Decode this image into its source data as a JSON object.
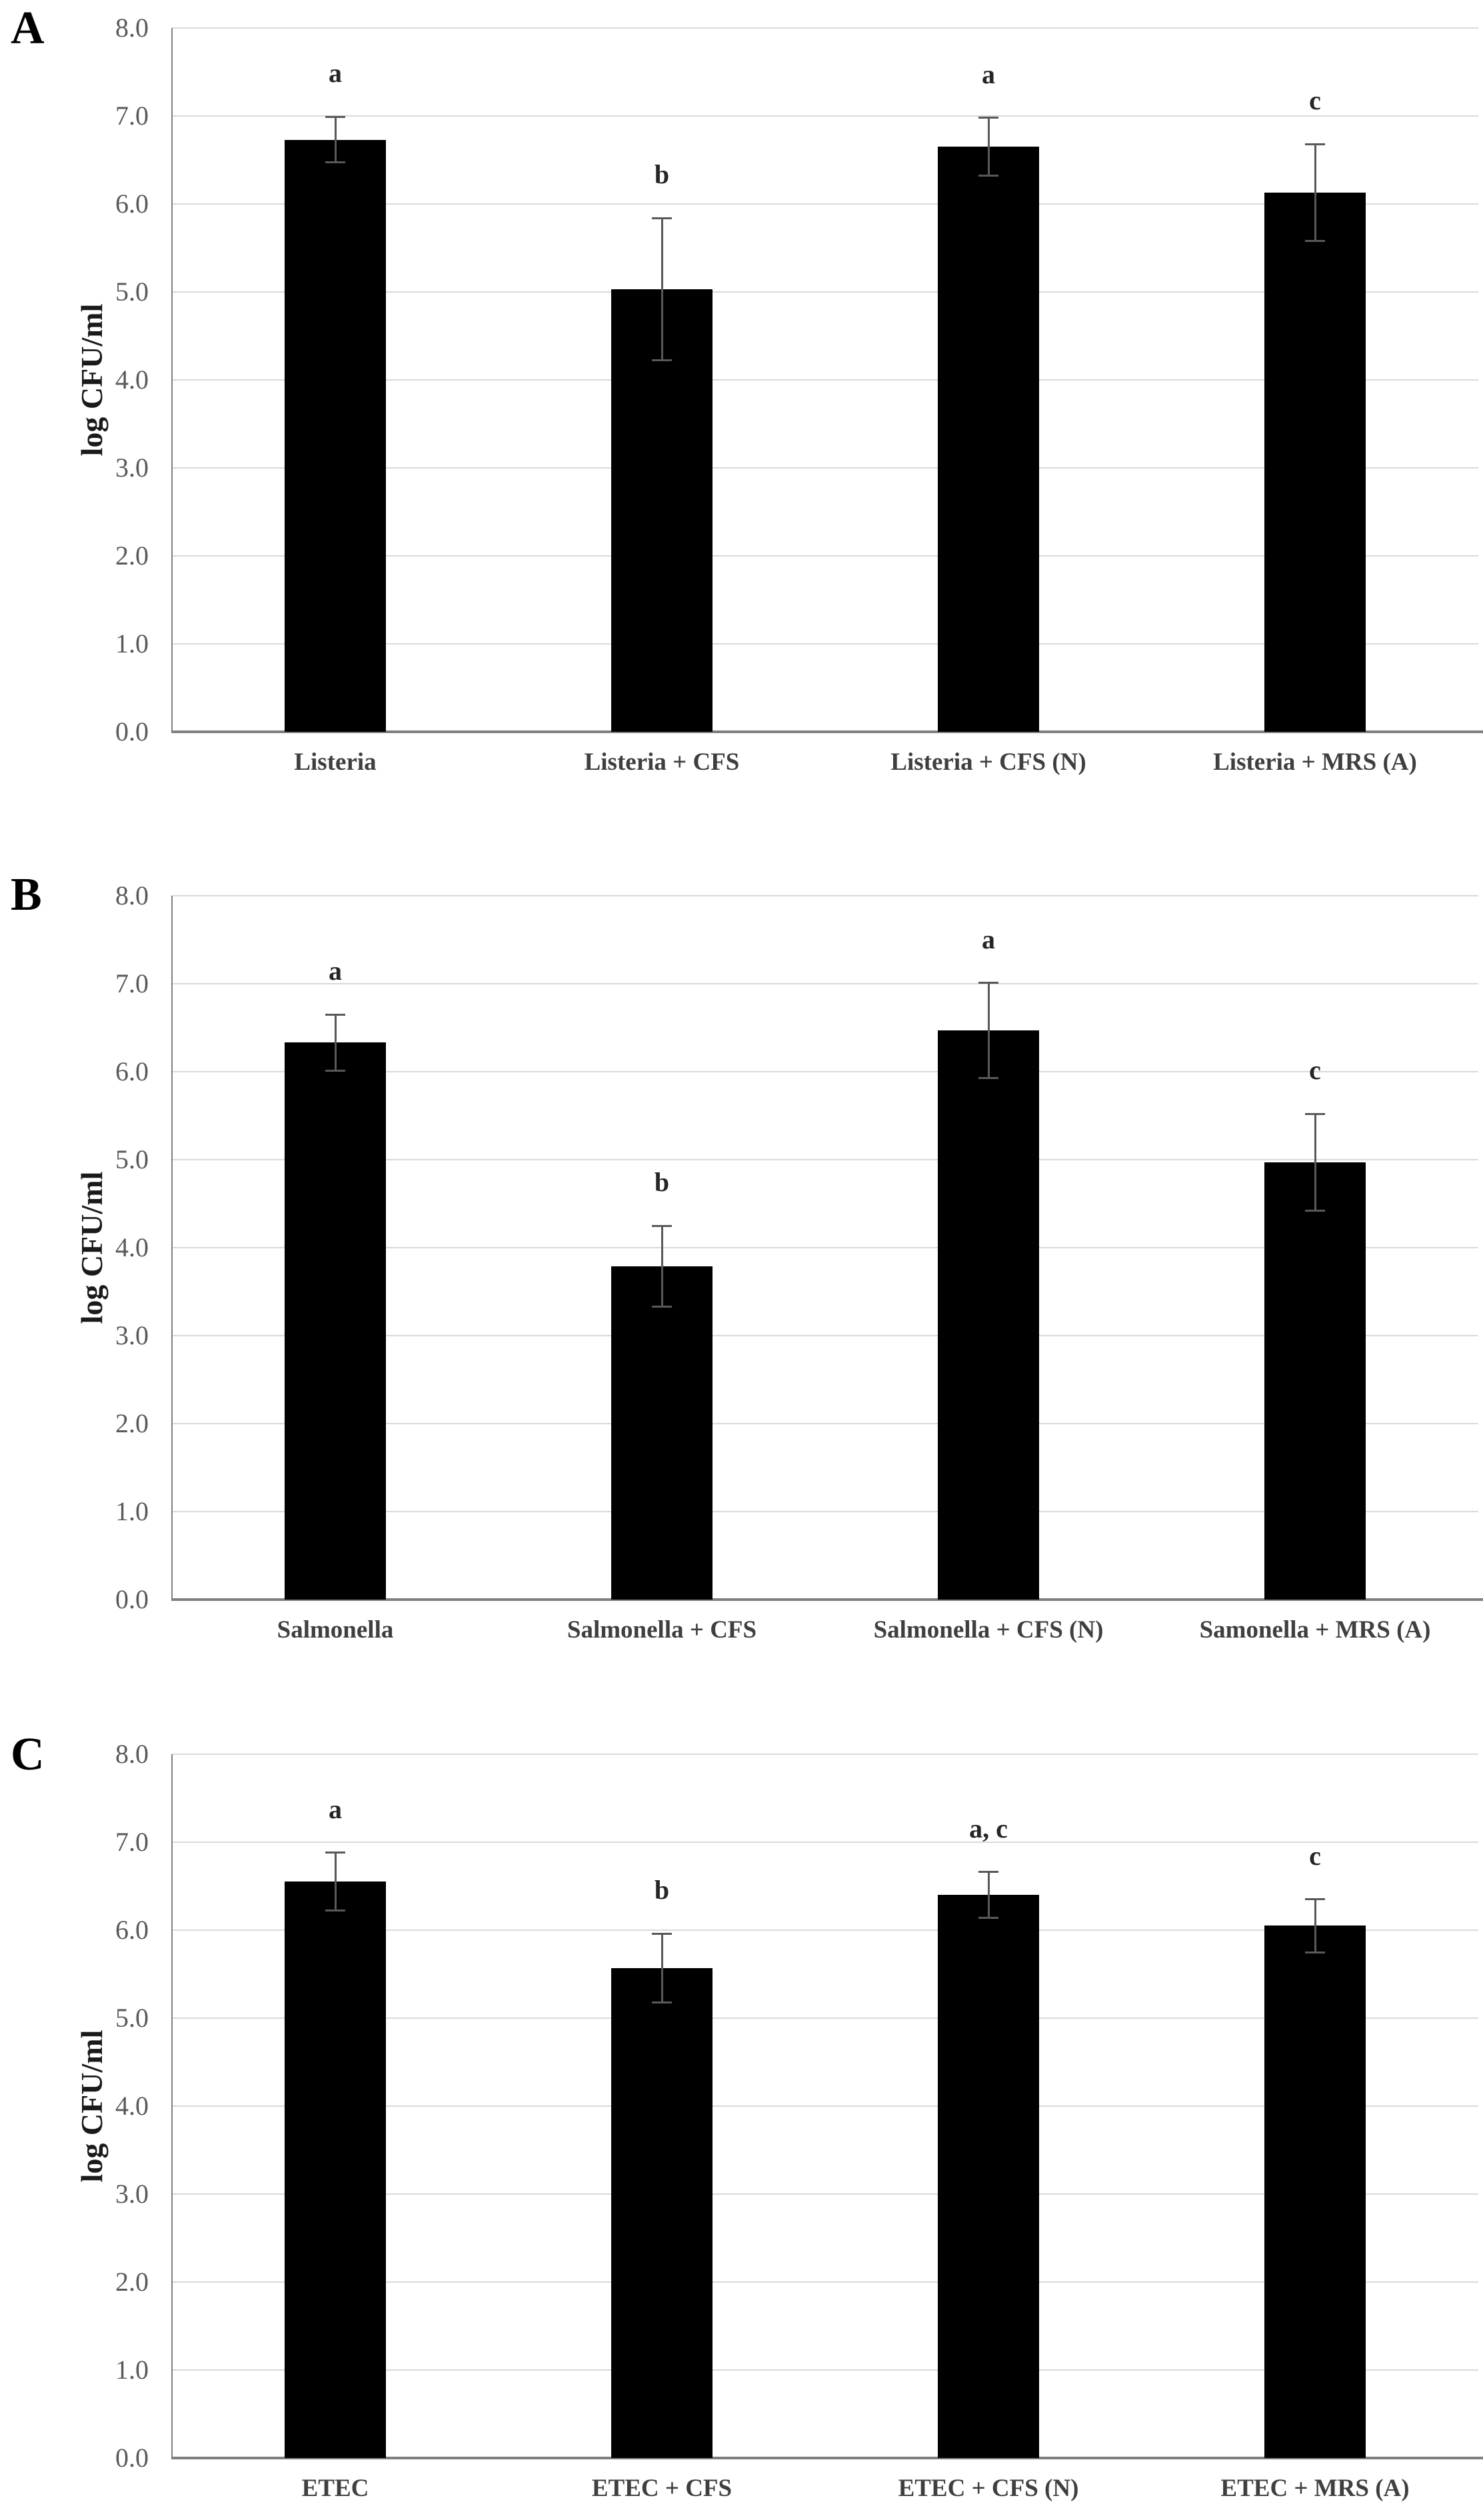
{
  "page": {
    "background": "#ffffff"
  },
  "colors": {
    "bar": "#000000",
    "error_bar": "#595959",
    "gridline": "#d9d9d9",
    "axis": "#7f7f7f",
    "tick_text": "#595959",
    "category_text": "#3f3f3f",
    "sig_text": "#262626",
    "panel_letter": "#000000"
  },
  "chart_data": [
    {
      "type": "bar",
      "panel_label": "A",
      "title": "",
      "xlabel": "",
      "ylabel": "log CFU/ml",
      "ylim": [
        0.0,
        8.0
      ],
      "ytick_step": 1.0,
      "ytick_labels": [
        "8.0",
        "7.0",
        "6.0",
        "5.0",
        "4.0",
        "3.0",
        "2.0",
        "1.0",
        "0.0"
      ],
      "grid": true,
      "legend": "none",
      "categories": [
        "Listeria",
        "Listeria + CFS",
        "Listeria + CFS (N)",
        "Listeria + MRS (A)"
      ],
      "values": [
        6.73,
        5.03,
        6.65,
        6.13
      ],
      "error_bars": [
        0.26,
        0.81,
        0.33,
        0.55
      ],
      "significance_labels": [
        "a",
        "b",
        "a",
        "c"
      ]
    },
    {
      "type": "bar",
      "panel_label": "B",
      "title": "",
      "xlabel": "",
      "ylabel": "log CFU/ml",
      "ylim": [
        0.0,
        8.0
      ],
      "ytick_step": 1.0,
      "ytick_labels": [
        "8.0",
        "7.0",
        "6.0",
        "5.0",
        "4.0",
        "3.0",
        "2.0",
        "1.0",
        "0.0"
      ],
      "grid": true,
      "legend": "none",
      "categories": [
        "Salmonella",
        "Salmonella + CFS",
        "Salmonella + CFS (N)",
        "Samonella + MRS (A)"
      ],
      "values": [
        6.33,
        3.79,
        6.47,
        4.97
      ],
      "error_bars": [
        0.32,
        0.46,
        0.54,
        0.55
      ],
      "significance_labels": [
        "a",
        "b",
        "a",
        "c"
      ]
    },
    {
      "type": "bar",
      "panel_label": "C",
      "title": "",
      "xlabel": "",
      "ylabel": "log CFU/ml",
      "ylim": [
        0.0,
        8.0
      ],
      "ytick_step": 1.0,
      "ytick_labels": [
        "8.0",
        "7.0",
        "6.0",
        "5.0",
        "4.0",
        "3.0",
        "2.0",
        "1.0",
        "0.0"
      ],
      "grid": true,
      "legend": "none",
      "categories": [
        "ETEC",
        "ETEC + CFS",
        "ETEC + CFS (N)",
        "ETEC + MRS (A)"
      ],
      "values": [
        6.55,
        5.57,
        6.4,
        6.05
      ],
      "error_bars": [
        0.33,
        0.39,
        0.26,
        0.3
      ],
      "significance_labels": [
        "a",
        "b",
        "a, c",
        "c"
      ]
    }
  ]
}
